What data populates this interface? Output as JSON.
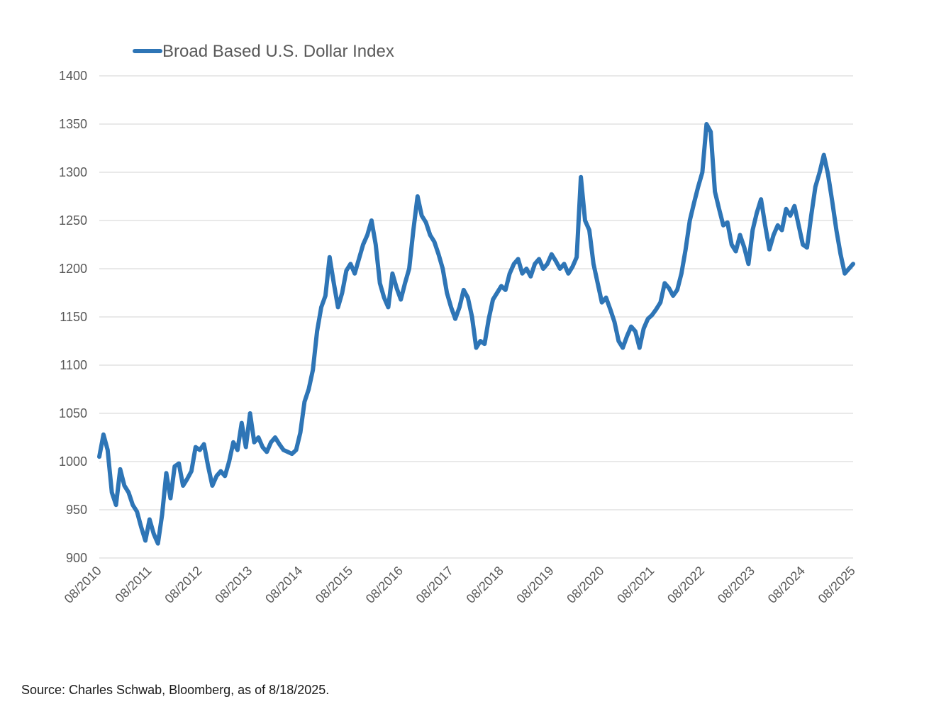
{
  "chart_data": {
    "type": "line",
    "legend": {
      "position": "top-left",
      "entries": [
        "Broad Based U.S. Dollar Index"
      ]
    },
    "colors": {
      "series": "#2e75b6",
      "grid": "#e2e2e2",
      "text": "#595959"
    },
    "grid": true,
    "ylim": [
      900,
      1400
    ],
    "yticks": [
      "900",
      "950",
      "1000",
      "1050",
      "1100",
      "1150",
      "1200",
      "1250",
      "1300",
      "1350",
      "1400"
    ],
    "xticks": [
      "08/2010",
      "08/2011",
      "08/2012",
      "08/2013",
      "08/2014",
      "08/2015",
      "08/2016",
      "08/2017",
      "08/2018",
      "08/2019",
      "08/2020",
      "08/2021",
      "08/2022",
      "08/2023",
      "08/2024",
      "08/2025"
    ],
    "xlim": [
      "2010-08",
      "2025-08"
    ],
    "series": [
      {
        "name": "Broad Based U.S. Dollar Index",
        "points": [
          [
            "2010-08",
            1005
          ],
          [
            "2010-09",
            1028
          ],
          [
            "2010-10",
            1012
          ],
          [
            "2010-11",
            968
          ],
          [
            "2010-12",
            955
          ],
          [
            "2011-01",
            992
          ],
          [
            "2011-02",
            975
          ],
          [
            "2011-03",
            968
          ],
          [
            "2011-04",
            955
          ],
          [
            "2011-05",
            948
          ],
          [
            "2011-06",
            932
          ],
          [
            "2011-07",
            918
          ],
          [
            "2011-08",
            940
          ],
          [
            "2011-09",
            925
          ],
          [
            "2011-10",
            915
          ],
          [
            "2011-11",
            945
          ],
          [
            "2011-12",
            988
          ],
          [
            "2012-01",
            962
          ],
          [
            "2012-02",
            995
          ],
          [
            "2012-03",
            998
          ],
          [
            "2012-04",
            975
          ],
          [
            "2012-05",
            982
          ],
          [
            "2012-06",
            990
          ],
          [
            "2012-07",
            1015
          ],
          [
            "2012-08",
            1012
          ],
          [
            "2012-09",
            1018
          ],
          [
            "2012-10",
            995
          ],
          [
            "2012-11",
            975
          ],
          [
            "2012-12",
            985
          ],
          [
            "2013-01",
            990
          ],
          [
            "2013-02",
            985
          ],
          [
            "2013-03",
            1000
          ],
          [
            "2013-04",
            1020
          ],
          [
            "2013-05",
            1012
          ],
          [
            "2013-06",
            1040
          ],
          [
            "2013-07",
            1015
          ],
          [
            "2013-08",
            1050
          ],
          [
            "2013-09",
            1020
          ],
          [
            "2013-10",
            1025
          ],
          [
            "2013-11",
            1015
          ],
          [
            "2013-12",
            1010
          ],
          [
            "2014-01",
            1020
          ],
          [
            "2014-02",
            1025
          ],
          [
            "2014-03",
            1018
          ],
          [
            "2014-04",
            1012
          ],
          [
            "2014-05",
            1010
          ],
          [
            "2014-06",
            1008
          ],
          [
            "2014-07",
            1012
          ],
          [
            "2014-08",
            1030
          ],
          [
            "2014-09",
            1062
          ],
          [
            "2014-10",
            1075
          ],
          [
            "2014-11",
            1095
          ],
          [
            "2014-12",
            1135
          ],
          [
            "2015-01",
            1160
          ],
          [
            "2015-02",
            1172
          ],
          [
            "2015-03",
            1212
          ],
          [
            "2015-04",
            1185
          ],
          [
            "2015-05",
            1160
          ],
          [
            "2015-06",
            1175
          ],
          [
            "2015-07",
            1198
          ],
          [
            "2015-08",
            1205
          ],
          [
            "2015-09",
            1195
          ],
          [
            "2015-10",
            1210
          ],
          [
            "2015-11",
            1225
          ],
          [
            "2015-12",
            1235
          ],
          [
            "2016-01",
            1250
          ],
          [
            "2016-02",
            1225
          ],
          [
            "2016-03",
            1185
          ],
          [
            "2016-04",
            1170
          ],
          [
            "2016-05",
            1160
          ],
          [
            "2016-06",
            1195
          ],
          [
            "2016-07",
            1180
          ],
          [
            "2016-08",
            1168
          ],
          [
            "2016-09",
            1185
          ],
          [
            "2016-10",
            1200
          ],
          [
            "2016-11",
            1240
          ],
          [
            "2016-12",
            1275
          ],
          [
            "2017-01",
            1255
          ],
          [
            "2017-02",
            1248
          ],
          [
            "2017-03",
            1235
          ],
          [
            "2017-04",
            1228
          ],
          [
            "2017-05",
            1215
          ],
          [
            "2017-06",
            1200
          ],
          [
            "2017-07",
            1175
          ],
          [
            "2017-08",
            1160
          ],
          [
            "2017-09",
            1148
          ],
          [
            "2017-10",
            1160
          ],
          [
            "2017-11",
            1178
          ],
          [
            "2017-12",
            1170
          ],
          [
            "2018-01",
            1150
          ],
          [
            "2018-02",
            1118
          ],
          [
            "2018-03",
            1125
          ],
          [
            "2018-04",
            1122
          ],
          [
            "2018-05",
            1148
          ],
          [
            "2018-06",
            1168
          ],
          [
            "2018-07",
            1175
          ],
          [
            "2018-08",
            1182
          ],
          [
            "2018-09",
            1178
          ],
          [
            "2018-10",
            1195
          ],
          [
            "2018-11",
            1205
          ],
          [
            "2018-12",
            1210
          ],
          [
            "2019-01",
            1195
          ],
          [
            "2019-02",
            1200
          ],
          [
            "2019-03",
            1192
          ],
          [
            "2019-04",
            1205
          ],
          [
            "2019-05",
            1210
          ],
          [
            "2019-06",
            1200
          ],
          [
            "2019-07",
            1205
          ],
          [
            "2019-08",
            1215
          ],
          [
            "2019-09",
            1208
          ],
          [
            "2019-10",
            1200
          ],
          [
            "2019-11",
            1205
          ],
          [
            "2019-12",
            1195
          ],
          [
            "2020-01",
            1202
          ],
          [
            "2020-02",
            1212
          ],
          [
            "2020-03",
            1295
          ],
          [
            "2020-04",
            1250
          ],
          [
            "2020-05",
            1240
          ],
          [
            "2020-06",
            1205
          ],
          [
            "2020-07",
            1185
          ],
          [
            "2020-08",
            1165
          ],
          [
            "2020-09",
            1170
          ],
          [
            "2020-10",
            1158
          ],
          [
            "2020-11",
            1145
          ],
          [
            "2020-12",
            1125
          ],
          [
            "2021-01",
            1118
          ],
          [
            "2021-02",
            1130
          ],
          [
            "2021-03",
            1140
          ],
          [
            "2021-04",
            1135
          ],
          [
            "2021-05",
            1118
          ],
          [
            "2021-06",
            1138
          ],
          [
            "2021-07",
            1148
          ],
          [
            "2021-08",
            1152
          ],
          [
            "2021-09",
            1158
          ],
          [
            "2021-10",
            1165
          ],
          [
            "2021-11",
            1185
          ],
          [
            "2021-12",
            1180
          ],
          [
            "2022-01",
            1172
          ],
          [
            "2022-02",
            1178
          ],
          [
            "2022-03",
            1195
          ],
          [
            "2022-04",
            1220
          ],
          [
            "2022-05",
            1250
          ],
          [
            "2022-06",
            1268
          ],
          [
            "2022-07",
            1285
          ],
          [
            "2022-08",
            1300
          ],
          [
            "2022-09",
            1350
          ],
          [
            "2022-10",
            1342
          ],
          [
            "2022-11",
            1280
          ],
          [
            "2022-12",
            1262
          ],
          [
            "2023-01",
            1245
          ],
          [
            "2023-02",
            1248
          ],
          [
            "2023-03",
            1225
          ],
          [
            "2023-04",
            1218
          ],
          [
            "2023-05",
            1235
          ],
          [
            "2023-06",
            1222
          ],
          [
            "2023-07",
            1205
          ],
          [
            "2023-08",
            1240
          ],
          [
            "2023-09",
            1258
          ],
          [
            "2023-10",
            1272
          ],
          [
            "2023-11",
            1245
          ],
          [
            "2023-12",
            1220
          ],
          [
            "2024-01",
            1235
          ],
          [
            "2024-02",
            1245
          ],
          [
            "2024-03",
            1240
          ],
          [
            "2024-04",
            1262
          ],
          [
            "2024-05",
            1255
          ],
          [
            "2024-06",
            1265
          ],
          [
            "2024-07",
            1245
          ],
          [
            "2024-08",
            1225
          ],
          [
            "2024-09",
            1222
          ],
          [
            "2024-10",
            1255
          ],
          [
            "2024-11",
            1285
          ],
          [
            "2024-12",
            1300
          ],
          [
            "2025-01",
            1318
          ],
          [
            "2025-02",
            1298
          ],
          [
            "2025-03",
            1270
          ],
          [
            "2025-04",
            1240
          ],
          [
            "2025-05",
            1215
          ],
          [
            "2025-06",
            1195
          ],
          [
            "2025-07",
            1200
          ],
          [
            "2025-08",
            1205
          ]
        ]
      }
    ]
  },
  "footer": {
    "source": "Source: Charles Schwab, Bloomberg, as of 8/18/2025."
  }
}
